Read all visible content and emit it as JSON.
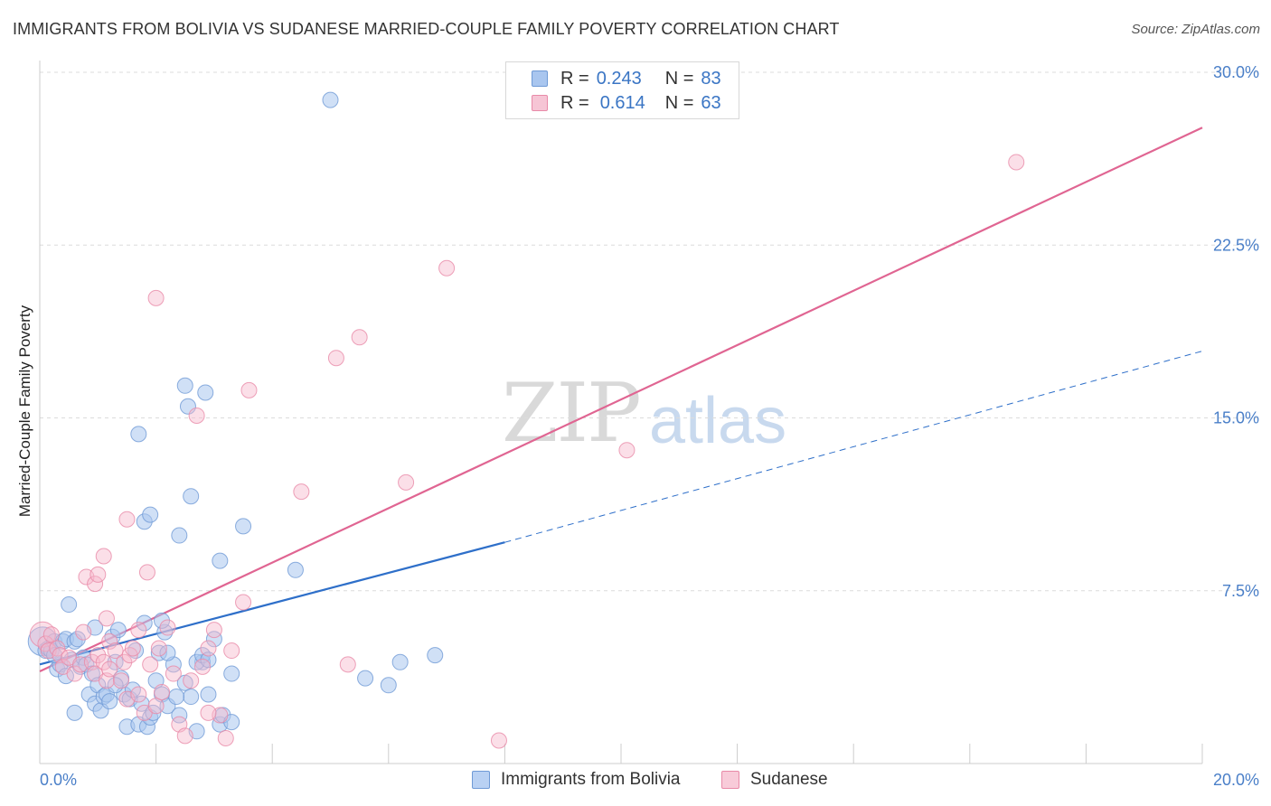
{
  "title": "IMMIGRANTS FROM BOLIVIA VS SUDANESE MARRIED-COUPLE FAMILY POVERTY CORRELATION CHART",
  "source": "Source: ZipAtlas.com",
  "watermark": {
    "zip": "ZIP",
    "atlas": "atlas"
  },
  "legend": {
    "r_label": "R =",
    "n_label": "N =",
    "rows": [
      {
        "r": "0.243",
        "n": "83"
      },
      {
        "r": "0.614",
        "n": "63"
      }
    ]
  },
  "colors": {
    "bolivia_fill": "#a9c6ef",
    "bolivia_stroke": "#6f9ad6",
    "bolivia_line": "#2e6fc9",
    "sudanese_fill": "#f6b9cc",
    "sudanese_stroke": "#e88aa8",
    "sudanese_line": "#e06592",
    "axis_tick": "#4a7fc8"
  },
  "chart_data": {
    "type": "scatter",
    "title": "IMMIGRANTS FROM BOLIVIA VS SUDANESE MARRIED-COUPLE FAMILY POVERTY CORRELATION CHART",
    "xlabel": "",
    "ylabel": "Married-Couple Family Poverty",
    "xlim": [
      0,
      20
    ],
    "ylim": [
      0,
      30
    ],
    "x_tick_labels": [
      "0.0%",
      "20.0%"
    ],
    "y_ticks": [
      7.5,
      15.0,
      22.5,
      30.0
    ],
    "y_tick_labels": [
      "7.5%",
      "15.0%",
      "22.5%",
      "30.0%"
    ],
    "grid": true,
    "legend_position": "top-center",
    "series": [
      {
        "name": "Immigrants from Bolivia",
        "r": 0.243,
        "n": 83,
        "trend": {
          "solid": [
            [
              0,
              4.3
            ],
            [
              8,
              9.6
            ]
          ],
          "dashed": [
            [
              8,
              9.6
            ],
            [
              20,
              17.9
            ]
          ]
        },
        "points": [
          [
            0.05,
            5.3,
            24
          ],
          [
            0.1,
            4.9,
            10
          ],
          [
            0.15,
            5.0,
            10
          ],
          [
            0.2,
            4.9,
            10
          ],
          [
            0.25,
            5.3,
            10
          ],
          [
            0.3,
            4.1,
            10
          ],
          [
            0.35,
            4.3,
            10
          ],
          [
            0.4,
            5.3,
            10
          ],
          [
            0.45,
            5.4,
            10
          ],
          [
            0.5,
            6.9,
            10
          ],
          [
            0.55,
            4.5,
            10
          ],
          [
            0.6,
            5.3,
            10
          ],
          [
            0.65,
            5.4,
            10
          ],
          [
            0.7,
            4.2,
            10
          ],
          [
            0.75,
            4.6,
            10
          ],
          [
            0.8,
            4.3,
            10
          ],
          [
            0.85,
            3.0,
            10
          ],
          [
            0.9,
            3.9,
            10
          ],
          [
            0.95,
            2.6,
            10
          ],
          [
            1.0,
            3.4,
            10
          ],
          [
            1.05,
            2.3,
            10
          ],
          [
            1.1,
            2.9,
            10
          ],
          [
            1.15,
            3.0,
            10
          ],
          [
            1.2,
            2.7,
            10
          ],
          [
            1.25,
            5.5,
            10
          ],
          [
            1.3,
            4.4,
            10
          ],
          [
            1.35,
            5.8,
            10
          ],
          [
            1.4,
            3.7,
            10
          ],
          [
            1.45,
            3.0,
            10
          ],
          [
            1.5,
            1.6,
            10
          ],
          [
            1.55,
            2.8,
            10
          ],
          [
            1.6,
            3.2,
            10
          ],
          [
            1.65,
            4.9,
            10
          ],
          [
            1.7,
            1.7,
            10
          ],
          [
            1.75,
            2.6,
            10
          ],
          [
            1.8,
            6.1,
            10
          ],
          [
            1.85,
            1.6,
            10
          ],
          [
            1.9,
            2.0,
            10
          ],
          [
            1.95,
            2.2,
            10
          ],
          [
            2.0,
            3.6,
            10
          ],
          [
            2.05,
            4.8,
            10
          ],
          [
            2.1,
            3.0,
            10
          ],
          [
            2.15,
            5.7,
            10
          ],
          [
            2.2,
            2.5,
            10
          ],
          [
            2.3,
            4.3,
            10
          ],
          [
            2.4,
            2.1,
            10
          ],
          [
            2.5,
            3.5,
            10
          ],
          [
            2.6,
            2.9,
            10
          ],
          [
            2.7,
            1.4,
            10
          ],
          [
            2.8,
            4.4,
            10
          ],
          [
            2.9,
            3.0,
            10
          ],
          [
            1.7,
            14.3,
            10
          ],
          [
            1.8,
            10.5,
            10
          ],
          [
            1.9,
            10.8,
            10
          ],
          [
            2.1,
            6.2,
            10
          ],
          [
            2.2,
            4.8,
            10
          ],
          [
            2.4,
            9.9,
            10
          ],
          [
            2.35,
            2.9,
            10
          ],
          [
            2.5,
            16.4,
            10
          ],
          [
            2.55,
            15.5,
            10
          ],
          [
            2.6,
            11.6,
            10
          ],
          [
            2.7,
            4.4,
            10
          ],
          [
            2.8,
            4.7,
            10
          ],
          [
            2.85,
            16.1,
            10
          ],
          [
            2.9,
            4.5,
            10
          ],
          [
            3.0,
            5.4,
            10
          ],
          [
            3.1,
            1.7,
            10
          ],
          [
            3.15,
            2.1,
            10
          ],
          [
            3.3,
            1.8,
            10
          ],
          [
            3.1,
            8.8,
            10
          ],
          [
            3.3,
            3.9,
            10
          ],
          [
            3.5,
            10.3,
            10
          ],
          [
            4.4,
            8.4,
            10
          ],
          [
            5.0,
            28.8,
            10
          ],
          [
            5.6,
            3.7,
            10
          ],
          [
            6.2,
            4.4,
            10
          ],
          [
            6.0,
            3.4,
            10
          ],
          [
            6.8,
            4.7,
            10
          ],
          [
            0.6,
            2.2,
            10
          ],
          [
            1.3,
            3.4,
            10
          ],
          [
            0.95,
            5.9,
            10
          ],
          [
            0.25,
            4.7,
            10
          ],
          [
            0.45,
            3.8,
            10
          ]
        ]
      },
      {
        "name": "Sudanese",
        "r": 0.614,
        "n": 63,
        "trend": {
          "solid": [
            [
              0,
              4.0
            ],
            [
              20,
              27.6
            ]
          ]
        },
        "points": [
          [
            0.05,
            5.6,
            20
          ],
          [
            0.1,
            5.2,
            10
          ],
          [
            0.15,
            4.9,
            10
          ],
          [
            0.2,
            5.6,
            10
          ],
          [
            0.3,
            5.0,
            10
          ],
          [
            0.35,
            4.7,
            10
          ],
          [
            0.4,
            4.2,
            10
          ],
          [
            0.5,
            4.6,
            10
          ],
          [
            0.6,
            3.9,
            10
          ],
          [
            0.7,
            4.3,
            10
          ],
          [
            0.75,
            5.7,
            10
          ],
          [
            0.8,
            8.1,
            10
          ],
          [
            0.9,
            4.4,
            10
          ],
          [
            0.95,
            3.9,
            10
          ],
          [
            1.0,
            4.7,
            10
          ],
          [
            1.1,
            4.4,
            10
          ],
          [
            1.15,
            3.6,
            10
          ],
          [
            1.2,
            4.1,
            10
          ],
          [
            0.95,
            7.8,
            10
          ],
          [
            1.0,
            8.2,
            10
          ],
          [
            1.1,
            9.0,
            10
          ],
          [
            1.15,
            6.3,
            10
          ],
          [
            1.2,
            5.3,
            10
          ],
          [
            1.3,
            4.9,
            10
          ],
          [
            1.4,
            3.6,
            10
          ],
          [
            1.45,
            4.4,
            10
          ],
          [
            1.5,
            2.8,
            10
          ],
          [
            1.55,
            4.7,
            10
          ],
          [
            1.6,
            5.0,
            10
          ],
          [
            1.7,
            3.0,
            10
          ],
          [
            1.5,
            10.6,
            10
          ],
          [
            1.8,
            2.2,
            10
          ],
          [
            1.9,
            4.3,
            10
          ],
          [
            1.85,
            8.3,
            10
          ],
          [
            2.0,
            2.5,
            10
          ],
          [
            2.05,
            5.0,
            10
          ],
          [
            2.1,
            3.1,
            10
          ],
          [
            2.2,
            5.9,
            10
          ],
          [
            2.3,
            3.9,
            10
          ],
          [
            2.0,
            20.2,
            10
          ],
          [
            2.4,
            1.7,
            10
          ],
          [
            2.5,
            1.2,
            10
          ],
          [
            2.6,
            3.6,
            10
          ],
          [
            2.7,
            15.1,
            10
          ],
          [
            2.8,
            4.2,
            10
          ],
          [
            2.9,
            5.0,
            10
          ],
          [
            3.0,
            5.8,
            10
          ],
          [
            3.1,
            2.1,
            10
          ],
          [
            3.2,
            1.1,
            10
          ],
          [
            3.3,
            4.9,
            10
          ],
          [
            3.5,
            7.0,
            10
          ],
          [
            3.6,
            16.2,
            10
          ],
          [
            4.5,
            11.8,
            10
          ],
          [
            5.1,
            17.6,
            10
          ],
          [
            5.5,
            18.5,
            10
          ],
          [
            5.3,
            4.3,
            10
          ],
          [
            6.3,
            12.2,
            10
          ],
          [
            7.0,
            21.5,
            10
          ],
          [
            7.9,
            1.0,
            10
          ],
          [
            10.1,
            13.6,
            10
          ],
          [
            16.8,
            26.1,
            10
          ],
          [
            2.9,
            2.2,
            10
          ],
          [
            1.7,
            5.8,
            10
          ]
        ]
      }
    ]
  },
  "bottom_legend": [
    "Immigrants from Bolivia",
    "Sudanese"
  ]
}
